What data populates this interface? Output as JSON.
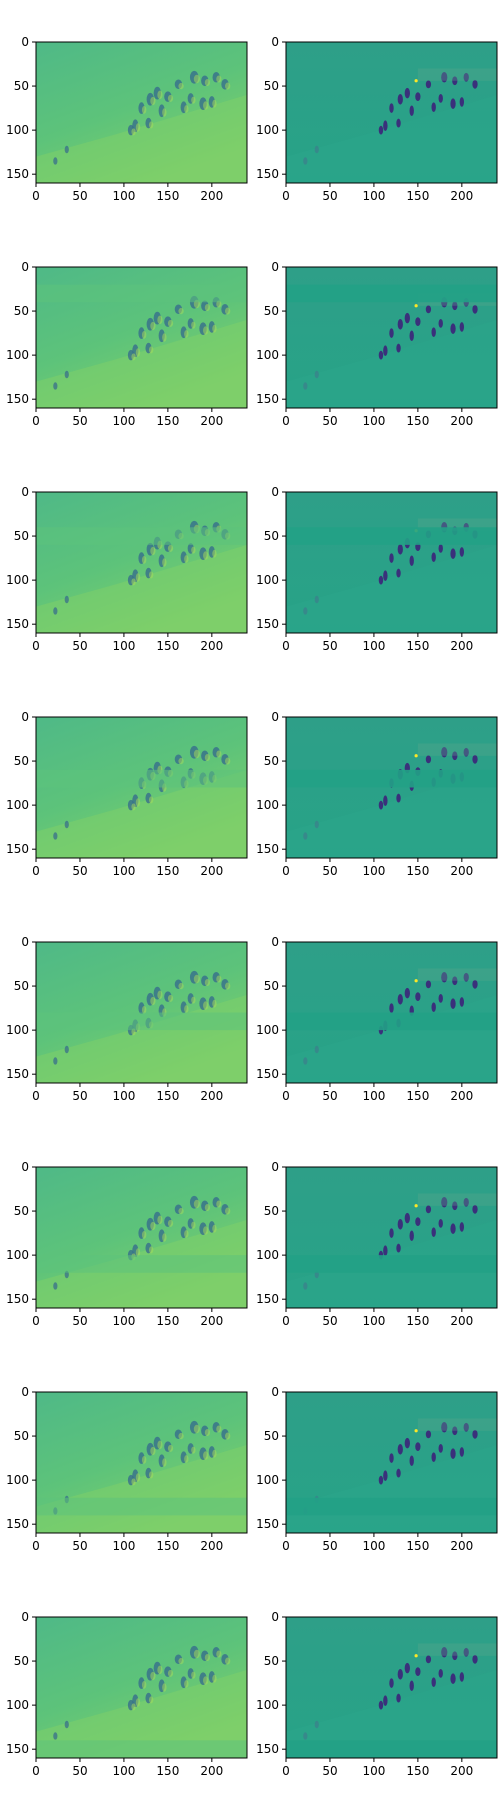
{
  "figure": {
    "rows": 8,
    "cols": 2
  },
  "chart_data": [
    {
      "type": "heatmap",
      "row": 1,
      "col": 1,
      "variant": "smooth",
      "band_y": null,
      "image_extent": {
        "x": [
          0,
          240
        ],
        "y": [
          160,
          0
        ]
      },
      "xticks": [
        0,
        50,
        100,
        150,
        200
      ],
      "yticks": [
        0,
        50,
        100,
        150
      ],
      "grid": false,
      "colormap": "viridis"
    },
    {
      "type": "heatmap",
      "row": 1,
      "col": 2,
      "variant": "detail",
      "band_y": null,
      "image_extent": {
        "x": [
          0,
          240
        ],
        "y": [
          160,
          0
        ]
      },
      "xticks": [
        0,
        50,
        100,
        150,
        200
      ],
      "yticks": [
        0,
        50,
        100,
        150
      ],
      "grid": false,
      "colormap": "viridis"
    },
    {
      "type": "heatmap",
      "row": 2,
      "col": 1,
      "variant": "smooth",
      "band_y": 20,
      "image_extent": {
        "x": [
          0,
          240
        ],
        "y": [
          160,
          0
        ]
      },
      "xticks": [
        0,
        50,
        100,
        150,
        200
      ],
      "yticks": [
        0,
        50,
        100,
        150
      ],
      "grid": false,
      "colormap": "viridis"
    },
    {
      "type": "heatmap",
      "row": 2,
      "col": 2,
      "variant": "detail",
      "band_y": 20,
      "image_extent": {
        "x": [
          0,
          240
        ],
        "y": [
          160,
          0
        ]
      },
      "xticks": [
        0,
        50,
        100,
        150,
        200
      ],
      "yticks": [
        0,
        50,
        100,
        150
      ],
      "grid": false,
      "colormap": "viridis"
    },
    {
      "type": "heatmap",
      "row": 3,
      "col": 1,
      "variant": "smooth",
      "band_y": 40,
      "image_extent": {
        "x": [
          0,
          240
        ],
        "y": [
          160,
          0
        ]
      },
      "xticks": [
        0,
        50,
        100,
        150,
        200
      ],
      "yticks": [
        0,
        50,
        100,
        150
      ],
      "grid": false,
      "colormap": "viridis"
    },
    {
      "type": "heatmap",
      "row": 3,
      "col": 2,
      "variant": "detail",
      "band_y": 40,
      "image_extent": {
        "x": [
          0,
          240
        ],
        "y": [
          160,
          0
        ]
      },
      "xticks": [
        0,
        50,
        100,
        150,
        200
      ],
      "yticks": [
        0,
        50,
        100,
        150
      ],
      "grid": false,
      "colormap": "viridis"
    },
    {
      "type": "heatmap",
      "row": 4,
      "col": 1,
      "variant": "smooth",
      "band_y": 60,
      "image_extent": {
        "x": [
          0,
          240
        ],
        "y": [
          160,
          0
        ]
      },
      "xticks": [
        0,
        50,
        100,
        150,
        200
      ],
      "yticks": [
        0,
        50,
        100,
        150
      ],
      "grid": false,
      "colormap": "viridis"
    },
    {
      "type": "heatmap",
      "row": 4,
      "col": 2,
      "variant": "detail",
      "band_y": 60,
      "image_extent": {
        "x": [
          0,
          240
        ],
        "y": [
          160,
          0
        ]
      },
      "xticks": [
        0,
        50,
        100,
        150,
        200
      ],
      "yticks": [
        0,
        50,
        100,
        150
      ],
      "grid": false,
      "colormap": "viridis"
    },
    {
      "type": "heatmap",
      "row": 5,
      "col": 1,
      "variant": "smooth",
      "band_y": 80,
      "image_extent": {
        "x": [
          0,
          240
        ],
        "y": [
          160,
          0
        ]
      },
      "xticks": [
        0,
        50,
        100,
        150,
        200
      ],
      "yticks": [
        0,
        50,
        100,
        150
      ],
      "grid": false,
      "colormap": "viridis"
    },
    {
      "type": "heatmap",
      "row": 5,
      "col": 2,
      "variant": "detail",
      "band_y": 80,
      "image_extent": {
        "x": [
          0,
          240
        ],
        "y": [
          160,
          0
        ]
      },
      "xticks": [
        0,
        50,
        100,
        150,
        200
      ],
      "yticks": [
        0,
        50,
        100,
        150
      ],
      "grid": false,
      "colormap": "viridis"
    },
    {
      "type": "heatmap",
      "row": 6,
      "col": 1,
      "variant": "smooth",
      "band_y": 100,
      "image_extent": {
        "x": [
          0,
          240
        ],
        "y": [
          160,
          0
        ]
      },
      "xticks": [
        0,
        50,
        100,
        150,
        200
      ],
      "yticks": [
        0,
        50,
        100,
        150
      ],
      "grid": false,
      "colormap": "viridis"
    },
    {
      "type": "heatmap",
      "row": 6,
      "col": 2,
      "variant": "detail",
      "band_y": 100,
      "image_extent": {
        "x": [
          0,
          240
        ],
        "y": [
          160,
          0
        ]
      },
      "xticks": [
        0,
        50,
        100,
        150,
        200
      ],
      "yticks": [
        0,
        50,
        100,
        150
      ],
      "grid": false,
      "colormap": "viridis"
    },
    {
      "type": "heatmap",
      "row": 7,
      "col": 1,
      "variant": "smooth",
      "band_y": 120,
      "image_extent": {
        "x": [
          0,
          240
        ],
        "y": [
          160,
          0
        ]
      },
      "xticks": [
        0,
        50,
        100,
        150,
        200
      ],
      "yticks": [
        0,
        50,
        100,
        150
      ],
      "grid": false,
      "colormap": "viridis"
    },
    {
      "type": "heatmap",
      "row": 7,
      "col": 2,
      "variant": "detail",
      "band_y": 120,
      "image_extent": {
        "x": [
          0,
          240
        ],
        "y": [
          160,
          0
        ]
      },
      "xticks": [
        0,
        50,
        100,
        150,
        200
      ],
      "yticks": [
        0,
        50,
        100,
        150
      ],
      "grid": false,
      "colormap": "viridis"
    },
    {
      "type": "heatmap",
      "row": 8,
      "col": 1,
      "variant": "smooth",
      "band_y": 140,
      "image_extent": {
        "x": [
          0,
          240
        ],
        "y": [
          160,
          0
        ]
      },
      "xticks": [
        0,
        50,
        100,
        150,
        200
      ],
      "yticks": [
        0,
        50,
        100,
        150
      ],
      "grid": false,
      "colormap": "viridis"
    },
    {
      "type": "heatmap",
      "row": 8,
      "col": 2,
      "variant": "detail",
      "band_y": 140,
      "image_extent": {
        "x": [
          0,
          240
        ],
        "y": [
          160,
          0
        ]
      },
      "xticks": [
        0,
        50,
        100,
        150,
        200
      ],
      "yticks": [
        0,
        50,
        100,
        150
      ],
      "grid": false,
      "colormap": "viridis"
    }
  ],
  "colors": {
    "smooth_bg": "#4fb987",
    "smooth_bright": "#7ecf6a",
    "detail_bg": "#2a9b8a",
    "detail_band": "#22a186",
    "figure_dark": "#3b2a7a",
    "figure_mid": "#34688d",
    "figure_light": "#5ec962",
    "highlight": "#fde725"
  }
}
